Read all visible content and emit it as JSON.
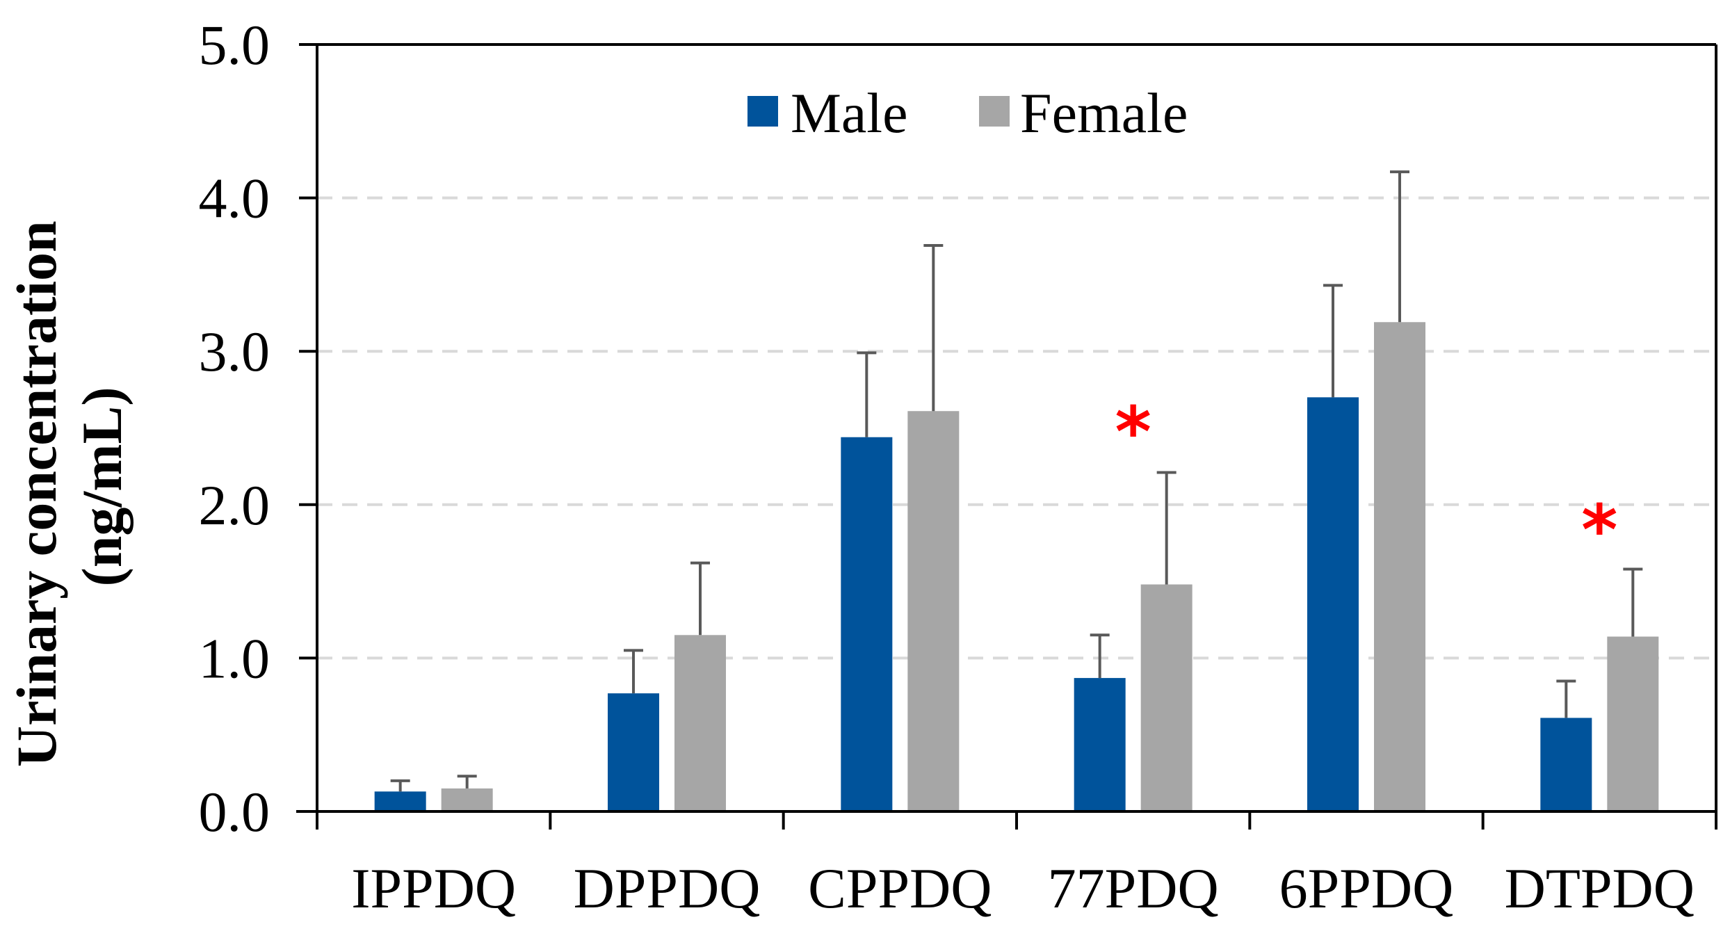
{
  "chart_data": {
    "type": "bar",
    "title": "",
    "xlabel": "",
    "ylabel_lines": [
      "Urinary concentration",
      "(ng/mL)"
    ],
    "ylim": [
      0,
      5
    ],
    "yticks": [
      0,
      1,
      2,
      3,
      4,
      5
    ],
    "ytick_labels": [
      "0.0",
      "1.0",
      "2.0",
      "3.0",
      "4.0",
      "5.0"
    ],
    "grid": "horizontal dashed",
    "legend_position": "top-center",
    "categories": [
      "IPPDQ",
      "DPPDQ",
      "CPPDQ",
      "77PDQ",
      "6PPDQ",
      "DTPDQ"
    ],
    "series": [
      {
        "name": "Male",
        "color": "#00539b",
        "values": [
          0.13,
          0.77,
          2.44,
          0.87,
          2.7,
          0.61
        ],
        "errors": [
          0.07,
          0.28,
          0.55,
          0.28,
          0.73,
          0.24
        ]
      },
      {
        "name": "Female",
        "color": "#a6a6a6",
        "values": [
          0.15,
          1.15,
          2.61,
          1.48,
          3.19,
          1.14
        ],
        "errors": [
          0.08,
          0.47,
          1.08,
          0.73,
          0.98,
          0.44
        ]
      }
    ],
    "annotations": [
      {
        "category": "77PDQ",
        "text": "*",
        "value": 2.58,
        "color": "#ff0000"
      },
      {
        "category": "DTPDQ",
        "text": "*",
        "value": 1.94,
        "color": "#ff0000"
      }
    ]
  }
}
